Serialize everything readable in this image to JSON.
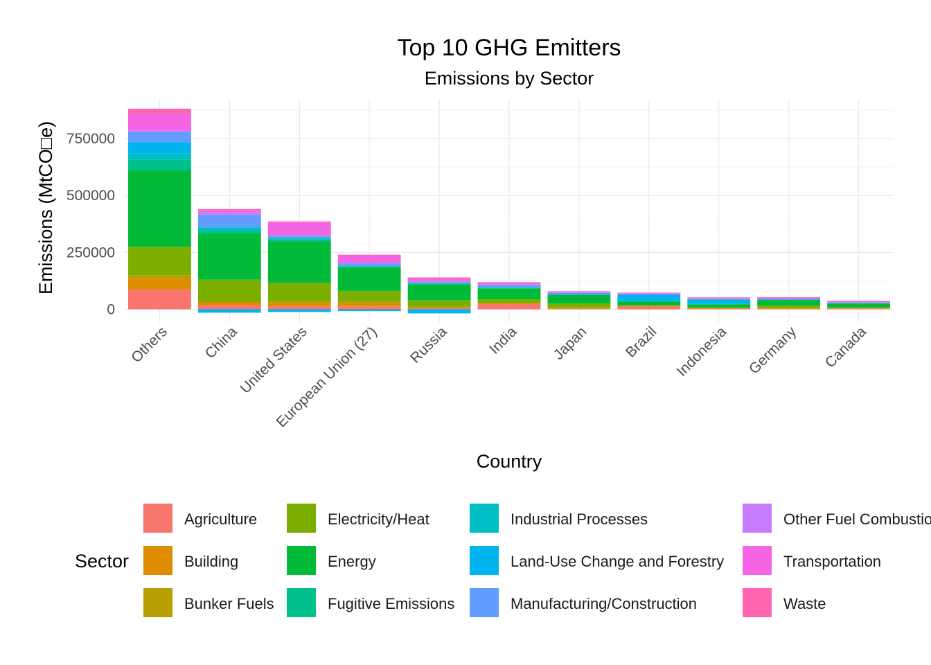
{
  "chart_data": {
    "type": "bar",
    "stacked": true,
    "title": "Top 10 GHG Emitters",
    "subtitle": "Emissions by Sector",
    "xlabel": "Country",
    "ylabel": "Emissions (MtCO□e)",
    "ylim": [
      -20000,
      880000
    ],
    "yticks": [
      0,
      250000,
      500000,
      750000
    ],
    "ytick_labels": [
      "0",
      "250000",
      "500000",
      "750000"
    ],
    "grid": true,
    "legend_title": "Sector",
    "legend_position": "bottom",
    "categories": [
      "Others",
      "China",
      "United States",
      "European Union (27)",
      "Russia",
      "India",
      "Japan",
      "Brazil",
      "Indonesia",
      "Germany",
      "Canada"
    ],
    "series": [
      {
        "name": "Agriculture",
        "color": "#F8766D",
        "values": [
          88000,
          18000,
          13000,
          13000,
          4000,
          23000,
          2000,
          13000,
          4000,
          2000,
          2500
        ]
      },
      {
        "name": "Building",
        "color": "#DE8C00",
        "values": [
          50000,
          14000,
          15000,
          15000,
          6000,
          3000,
          3000,
          1000,
          500,
          3500,
          2000
        ]
      },
      {
        "name": "Bunker Fuels",
        "color": "#B79F00",
        "values": [
          12000,
          0,
          5000,
          5000,
          1000,
          0,
          4000,
          1000,
          500,
          1000,
          500
        ]
      },
      {
        "name": "Electricity/Heat",
        "color": "#7CAE00",
        "values": [
          125000,
          98000,
          83000,
          48000,
          28000,
          18000,
          16000,
          3000,
          4000,
          10000,
          4000
        ]
      },
      {
        "name": "Energy",
        "color": "#00BA38",
        "values": [
          335000,
          203000,
          182000,
          102000,
          70000,
          48000,
          38000,
          16000,
          13000,
          24000,
          16000
        ]
      },
      {
        "name": "Fugitive Emissions",
        "color": "#00C08B",
        "values": [
          48000,
          12000,
          10000,
          5000,
          4000,
          2000,
          500,
          1000,
          2500,
          500,
          1500
        ]
      },
      {
        "name": "Industrial Processes",
        "color": "#00BFC4",
        "values": [
          26000,
          15000,
          5000,
          3000,
          2000,
          1000,
          1000,
          1000,
          1000,
          500,
          500
        ]
      },
      {
        "name": "Land-Use Change and Forestry",
        "color": "#00B4F0",
        "values": [
          50000,
          -15000,
          -12000,
          -8000,
          -18000,
          3000,
          1000,
          28000,
          18000,
          1000,
          1000
        ]
      },
      {
        "name": "Manufacturing/Construction",
        "color": "#619CFF",
        "values": [
          45000,
          55000,
          10000,
          10000,
          5000,
          8000,
          6000,
          2000,
          2000,
          3000,
          2000
        ]
      },
      {
        "name": "Other Fuel Combustion",
        "color": "#C77CFF",
        "values": [
          5000,
          10000,
          3000,
          3000,
          3000,
          4000,
          2000,
          1000,
          1000,
          1500,
          1000
        ]
      },
      {
        "name": "Transportation",
        "color": "#F564E3",
        "values": [
          75000,
          9000,
          55000,
          32000,
          12000,
          4000,
          5000,
          4000,
          3000,
          5000,
          5000
        ]
      },
      {
        "name": "Waste",
        "color": "#FF64B0",
        "values": [
          22000,
          6000,
          5000,
          4000,
          5000,
          5000,
          1000,
          2000,
          3000,
          1000,
          1500
        ]
      }
    ]
  }
}
